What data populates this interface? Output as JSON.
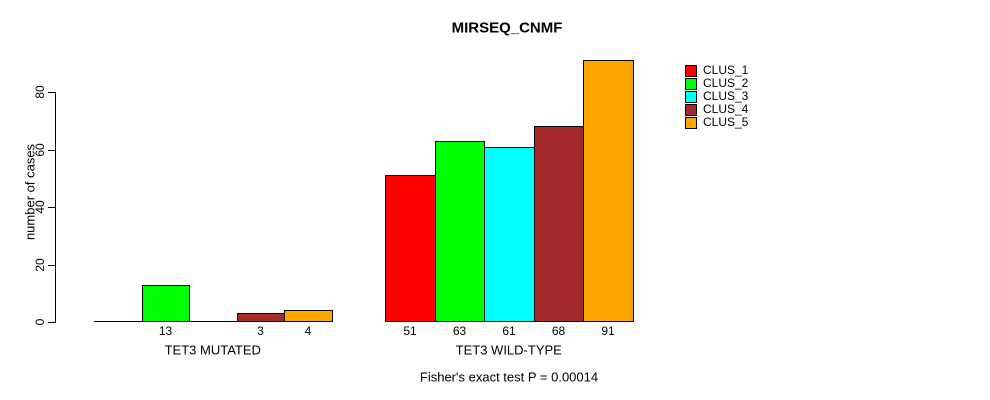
{
  "chart_data": {
    "type": "bar",
    "title": "MIRSEQ_CNMF",
    "xlabel": "",
    "ylabel": "number of cases",
    "categories": [
      "TET3 MUTATED",
      "TET3 WILD-TYPE"
    ],
    "series": [
      {
        "name": "CLUS_1",
        "color": "#FF0000",
        "values": [
          0,
          51
        ]
      },
      {
        "name": "CLUS_2",
        "color": "#00FF00",
        "values": [
          13,
          63
        ]
      },
      {
        "name": "CLUS_3",
        "color": "#00FFFF",
        "values": [
          0,
          61
        ]
      },
      {
        "name": "CLUS_4",
        "color": "#A52A2A",
        "values": [
          3,
          68
        ]
      },
      {
        "name": "CLUS_5",
        "color": "#FFA500",
        "values": [
          4,
          91
        ]
      }
    ],
    "bar_value_labels": [
      [
        "",
        "13",
        "",
        "3",
        "4"
      ],
      [
        "51",
        "63",
        "61",
        "68",
        "91"
      ]
    ],
    "yticks": [
      0,
      20,
      40,
      60,
      80
    ],
    "ylim": [
      0,
      92
    ],
    "grid": false,
    "legend_position": "right",
    "annotation": "Fisher's exact test P = 0.00014"
  }
}
